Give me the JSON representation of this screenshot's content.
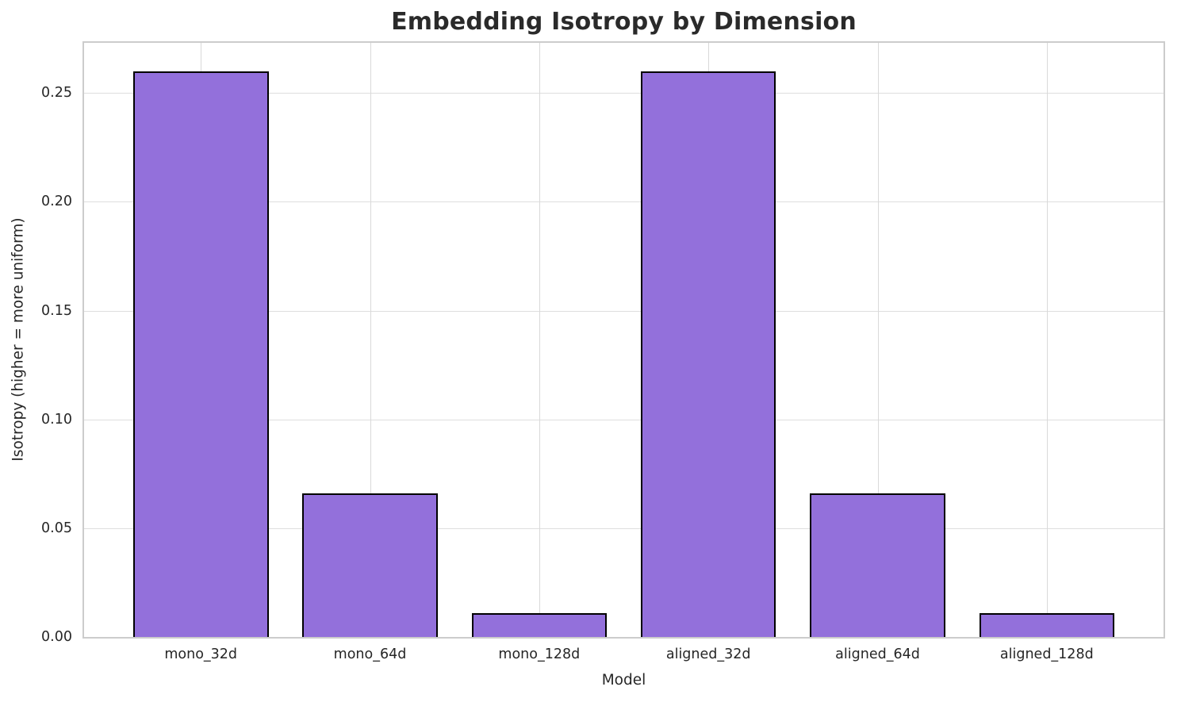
{
  "chart_data": {
    "type": "bar",
    "title": "Embedding Isotropy by Dimension",
    "xlabel": "Model",
    "ylabel": "Isotropy (higher = more uniform)",
    "categories": [
      "mono_32d",
      "mono_64d",
      "mono_128d",
      "aligned_32d",
      "aligned_64d",
      "aligned_128d"
    ],
    "values": [
      0.26,
      0.066,
      0.011,
      0.26,
      0.066,
      0.011
    ],
    "yticks": [
      0.0,
      0.05,
      0.1,
      0.15,
      0.2,
      0.25
    ],
    "ytick_labels": [
      "0.00",
      "0.05",
      "0.10",
      "0.15",
      "0.20",
      "0.25"
    ],
    "ylim": [
      0,
      0.273
    ],
    "xlim": [
      -0.69,
      5.69
    ],
    "bar_width": 0.8,
    "grid": true,
    "legend": "none",
    "colors": {
      "bar_fill": "#9370DB",
      "bar_edge": "#000000",
      "grid_line": "#dedede",
      "axis_border": "#cccccc",
      "text": "#262626",
      "background": "#ffffff"
    }
  }
}
